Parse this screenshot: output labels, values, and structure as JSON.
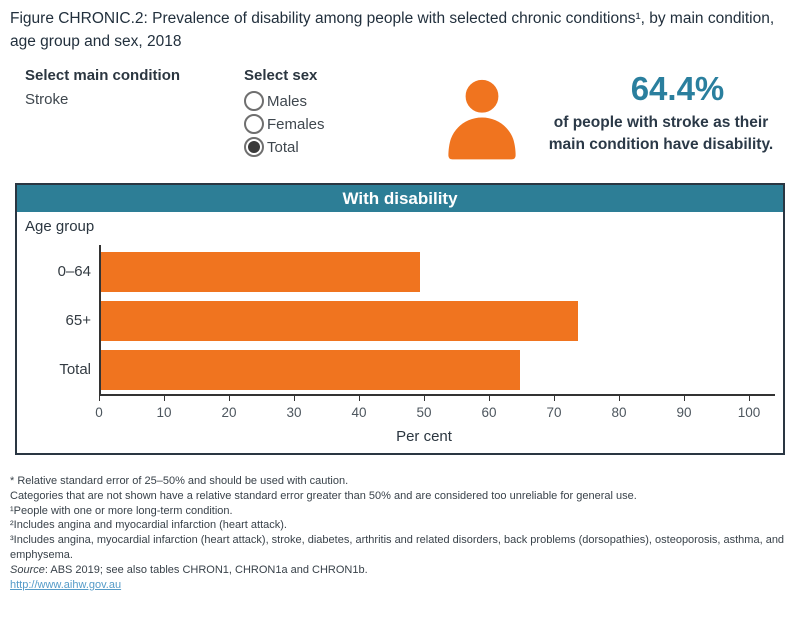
{
  "title": "Figure CHRONIC.2: Prevalence of disability among people with selected chronic conditions¹, by main condition, age group and sex, 2018",
  "controls": {
    "condition_label": "Select main condition",
    "condition_value": "Stroke",
    "sex_label": "Select sex",
    "sex_options": [
      {
        "label": "Males",
        "selected": false
      },
      {
        "label": "Females",
        "selected": false
      },
      {
        "label": "Total",
        "selected": true
      }
    ]
  },
  "stat": {
    "icon": "person-icon",
    "icon_color": "#f0741f",
    "value": "64.4%",
    "caption_line1": "of people with stroke as their",
    "caption_line2": "main condition have disability."
  },
  "chart_data": {
    "type": "bar",
    "orientation": "horizontal",
    "title": "With disability",
    "panel_label": "Age group",
    "categories": [
      "0–64",
      "65+",
      "Total"
    ],
    "values": [
      49.0,
      73.4,
      64.4
    ],
    "xlabel": "Per cent",
    "xlim": [
      0,
      104
    ],
    "xticks": [
      0,
      10,
      20,
      30,
      40,
      50,
      60,
      70,
      80,
      90,
      100
    ],
    "grid": false,
    "legend": "none",
    "bar_color": "#f0741f",
    "header_color": "#2d7e96",
    "axis_color": "#333333"
  },
  "footnotes": [
    "* Relative standard error of 25–50% and should be used with caution.",
    "Categories that are not shown have a relative standard error greater than 50% and are considered too unreliable for general use.",
    "¹People with one or more long-term condition.",
    "²Includes angina and myocardial infarction (heart attack).",
    "³Includes angina, myocardial infarction (heart attack), stroke, diabetes, arthritis and related disorders, back problems (dorsopathies), osteoporosis, asthma, and emphysema."
  ],
  "source": {
    "label": "Source",
    "text": ": ABS 2019; see also tables CHRON1, CHRON1a and CHRON1b."
  },
  "link": "http://www.aihw.gov.au",
  "colors": {
    "accent_orange": "#f0741f",
    "accent_teal": "#2d7e96",
    "stat_teal": "#2a7f9e",
    "text_dark": "#243440",
    "link_blue": "#559bc8"
  }
}
